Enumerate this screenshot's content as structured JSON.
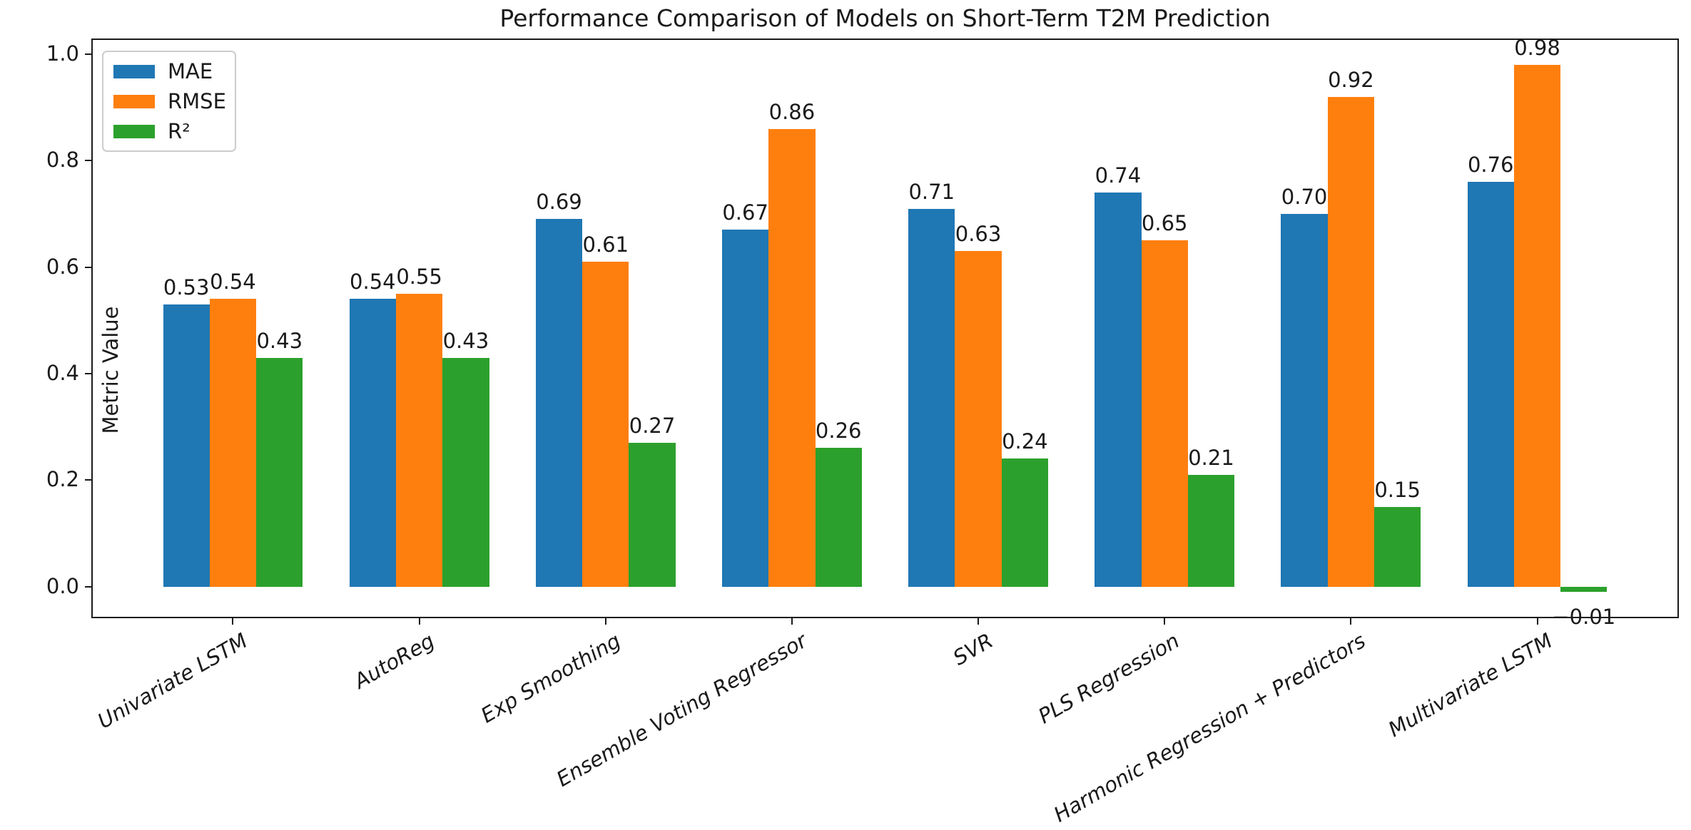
{
  "chart_data": {
    "type": "bar",
    "title": "Performance Comparison of Models on Short-Term T2M Prediction",
    "xlabel": "",
    "ylabel": "Metric Value",
    "categories": [
      "Univariate LSTM",
      "AutoReg",
      "Exp Smoothing",
      "Ensemble Voting Regressor",
      "SVR",
      "PLS Regression",
      "Harmonic Regression + Predictors",
      "Multivariate LSTM"
    ],
    "series": [
      {
        "name": "MAE",
        "color": "#1f77b4",
        "values": [
          0.53,
          0.54,
          0.69,
          0.67,
          0.71,
          0.74,
          0.7,
          0.76
        ],
        "labels": [
          "0.53",
          "0.54",
          "0.69",
          "0.67",
          "0.71",
          "0.74",
          "0.70",
          "0.76"
        ]
      },
      {
        "name": "RMSE",
        "color": "#ff7f0e",
        "values": [
          0.54,
          0.55,
          0.61,
          0.86,
          0.63,
          0.65,
          0.92,
          0.98
        ],
        "labels": [
          "0.54",
          "0.55",
          "0.61",
          "0.86",
          "0.63",
          "0.65",
          "0.92",
          "0.98"
        ]
      },
      {
        "name": "R²",
        "color": "#2ca02c",
        "values": [
          0.43,
          0.43,
          0.27,
          0.26,
          0.24,
          0.21,
          0.15,
          -0.01
        ],
        "labels": [
          "0.43",
          "0.43",
          "0.27",
          "0.26",
          "0.24",
          "0.21",
          "0.15",
          "−0.01"
        ]
      }
    ],
    "yticks": [
      0.0,
      0.2,
      0.4,
      0.6,
      0.8,
      1.0
    ],
    "ytick_labels": [
      "0.0",
      "0.2",
      "0.4",
      "0.6",
      "0.8",
      "1.0"
    ],
    "ylim": [
      -0.0595,
      1.0295
    ],
    "xlim": [
      -0.76,
      7.76
    ],
    "bar_width": 0.25,
    "grid": false,
    "legend_position": "upper left",
    "axis_color": "#1a1a1a",
    "legend_border_color": "#cccccc"
  }
}
